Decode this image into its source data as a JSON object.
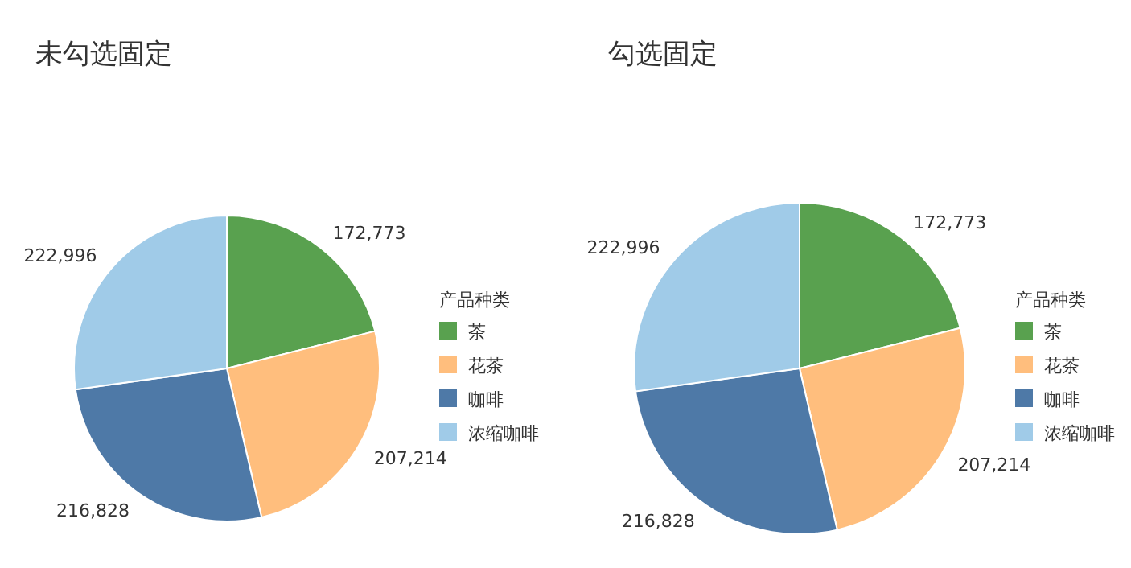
{
  "chart_data": [
    {
      "type": "pie",
      "title": "未勾选固定",
      "legend_title": "产品种类",
      "categories": [
        "茶",
        "花茶",
        "咖啡",
        "浓缩咖啡"
      ],
      "values": [
        172773,
        207214,
        216828,
        222996
      ],
      "colors": [
        "#59a14f",
        "#ffbe7d",
        "#4e79a7",
        "#a0cbe8"
      ],
      "value_labels": [
        "172,773",
        "207,214",
        "216,828",
        "222,996"
      ],
      "legend": "right"
    },
    {
      "type": "pie",
      "title": "勾选固定",
      "legend_title": "产品种类",
      "categories": [
        "茶",
        "花茶",
        "咖啡",
        "浓缩咖啡"
      ],
      "values": [
        172773,
        207214,
        216828,
        222996
      ],
      "colors": [
        "#59a14f",
        "#ffbe7d",
        "#4e79a7",
        "#a0cbe8"
      ],
      "value_labels": [
        "172,773",
        "207,214",
        "216,828",
        "222,996"
      ],
      "legend": "right"
    }
  ]
}
